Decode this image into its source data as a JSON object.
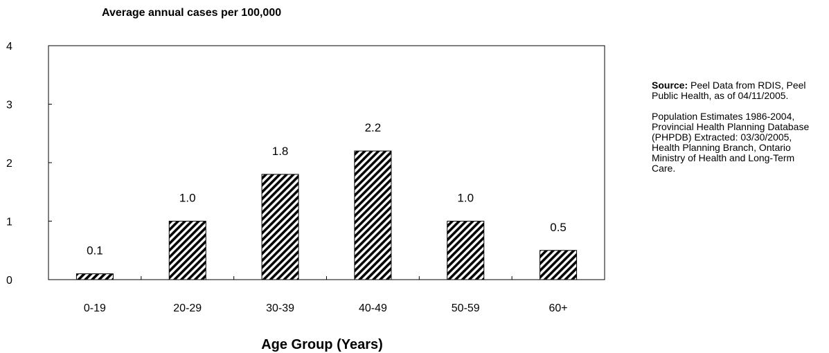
{
  "chart_data": {
    "type": "bar",
    "ylabel": "Average annual cases per 100,000",
    "xlabel": "Age Group (Years)",
    "categories": [
      "0-19",
      "20-29",
      "30-39",
      "40-49",
      "50-59",
      "60+"
    ],
    "values": [
      0.1,
      1.0,
      1.8,
      2.2,
      1.0,
      0.5
    ],
    "data_labels": [
      "0.1",
      "1.0",
      "1.8",
      "2.2",
      "1.0",
      "0.5"
    ],
    "ylim": [
      0,
      4
    ],
    "yticks": [
      "0",
      "1",
      "2",
      "3",
      "4"
    ],
    "grid": false,
    "bar_pattern": "diagonal-hatch",
    "bar_color": "#000000"
  },
  "notes": {
    "source_label": "Source:",
    "source_text": " Peel Data from RDIS, Peel Public Health, as of 04/11/2005.",
    "population_text": "Population Estimates 1986-2004, Provincial Health Planning Database (PHPDB) Extracted: 03/30/2005, Health Planning Branch, Ontario Ministry of Health and Long-Term Care."
  }
}
